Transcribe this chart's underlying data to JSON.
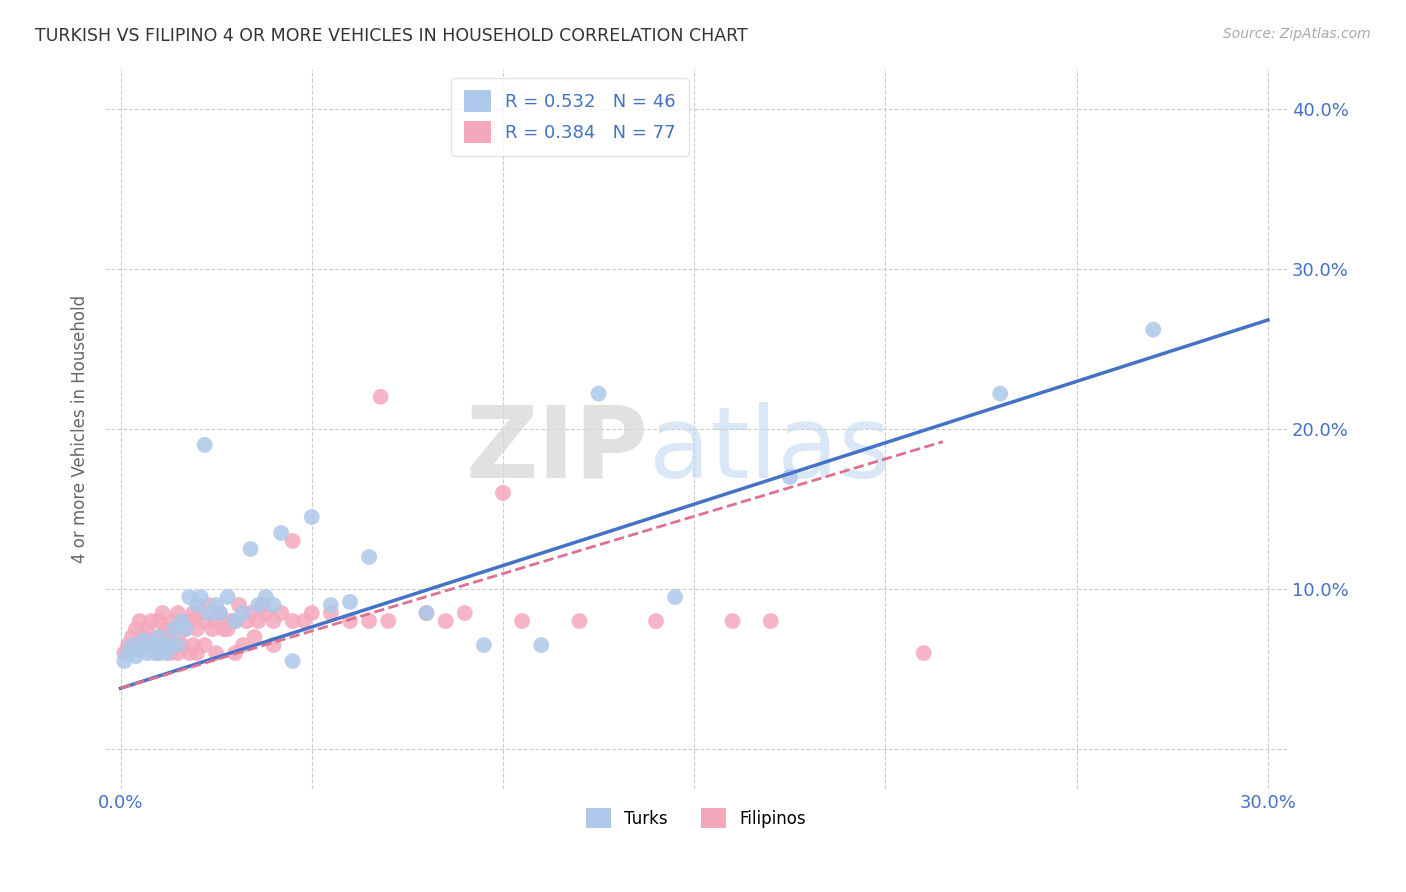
{
  "title": "TURKISH VS FILIPINO 4 OR MORE VEHICLES IN HOUSEHOLD CORRELATION CHART",
  "source": "Source: ZipAtlas.com",
  "ylabel": "4 or more Vehicles in Household",
  "xlim_min": -0.004,
  "xlim_max": 0.305,
  "ylim_min": -0.025,
  "ylim_max": 0.425,
  "xticks": [
    0.0,
    0.05,
    0.1,
    0.15,
    0.2,
    0.25,
    0.3
  ],
  "yticks": [
    0.0,
    0.1,
    0.2,
    0.3,
    0.4
  ],
  "turks_R": 0.532,
  "turks_N": 46,
  "filipinos_R": 0.384,
  "filipinos_N": 77,
  "turk_color": "#adc8ea",
  "filipino_color": "#f4a8bc",
  "turk_line_color": "#4472C4",
  "filipino_line_color": "#e07090",
  "label_color": "#4472C4",
  "watermark_zip": "ZIP",
  "watermark_atlas": "atlas",
  "background_color": "#ffffff",
  "turks_x": [
    0.001,
    0.002,
    0.003,
    0.004,
    0.005,
    0.006,
    0.007,
    0.008,
    0.009,
    0.01,
    0.01,
    0.011,
    0.012,
    0.013,
    0.014,
    0.015,
    0.016,
    0.017,
    0.018,
    0.02,
    0.021,
    0.022,
    0.023,
    0.025,
    0.026,
    0.028,
    0.03,
    0.032,
    0.034,
    0.036,
    0.038,
    0.04,
    0.042,
    0.045,
    0.05,
    0.055,
    0.06,
    0.065,
    0.08,
    0.095,
    0.11,
    0.125,
    0.145,
    0.175,
    0.23,
    0.27
  ],
  "turks_y": [
    0.055,
    0.06,
    0.065,
    0.058,
    0.062,
    0.068,
    0.06,
    0.065,
    0.06,
    0.07,
    0.06,
    0.065,
    0.06,
    0.065,
    0.075,
    0.065,
    0.08,
    0.075,
    0.095,
    0.09,
    0.095,
    0.19,
    0.085,
    0.09,
    0.085,
    0.095,
    0.08,
    0.085,
    0.125,
    0.09,
    0.095,
    0.09,
    0.135,
    0.055,
    0.145,
    0.09,
    0.092,
    0.12,
    0.085,
    0.065,
    0.065,
    0.222,
    0.095,
    0.17,
    0.222,
    0.262
  ],
  "filipinos_x": [
    0.001,
    0.002,
    0.003,
    0.004,
    0.005,
    0.005,
    0.006,
    0.007,
    0.008,
    0.008,
    0.009,
    0.01,
    0.01,
    0.01,
    0.011,
    0.011,
    0.012,
    0.012,
    0.013,
    0.013,
    0.014,
    0.014,
    0.015,
    0.015,
    0.015,
    0.016,
    0.016,
    0.017,
    0.018,
    0.018,
    0.019,
    0.019,
    0.02,
    0.02,
    0.021,
    0.022,
    0.022,
    0.023,
    0.024,
    0.025,
    0.025,
    0.026,
    0.027,
    0.028,
    0.029,
    0.03,
    0.03,
    0.031,
    0.032,
    0.033,
    0.034,
    0.035,
    0.036,
    0.037,
    0.038,
    0.04,
    0.04,
    0.042,
    0.045,
    0.045,
    0.048,
    0.05,
    0.055,
    0.06,
    0.065,
    0.068,
    0.07,
    0.08,
    0.085,
    0.09,
    0.1,
    0.105,
    0.12,
    0.14,
    0.16,
    0.17,
    0.21
  ],
  "filipinos_y": [
    0.06,
    0.065,
    0.07,
    0.075,
    0.065,
    0.08,
    0.07,
    0.075,
    0.065,
    0.08,
    0.065,
    0.06,
    0.07,
    0.08,
    0.065,
    0.085,
    0.07,
    0.075,
    0.06,
    0.075,
    0.065,
    0.08,
    0.06,
    0.07,
    0.085,
    0.065,
    0.08,
    0.075,
    0.06,
    0.08,
    0.065,
    0.085,
    0.06,
    0.075,
    0.085,
    0.065,
    0.08,
    0.09,
    0.075,
    0.06,
    0.08,
    0.085,
    0.075,
    0.075,
    0.08,
    0.06,
    0.08,
    0.09,
    0.065,
    0.08,
    0.085,
    0.07,
    0.08,
    0.09,
    0.085,
    0.065,
    0.08,
    0.085,
    0.08,
    0.13,
    0.08,
    0.085,
    0.085,
    0.08,
    0.08,
    0.22,
    0.08,
    0.085,
    0.08,
    0.085,
    0.16,
    0.08,
    0.08,
    0.08,
    0.08,
    0.08,
    0.06
  ]
}
